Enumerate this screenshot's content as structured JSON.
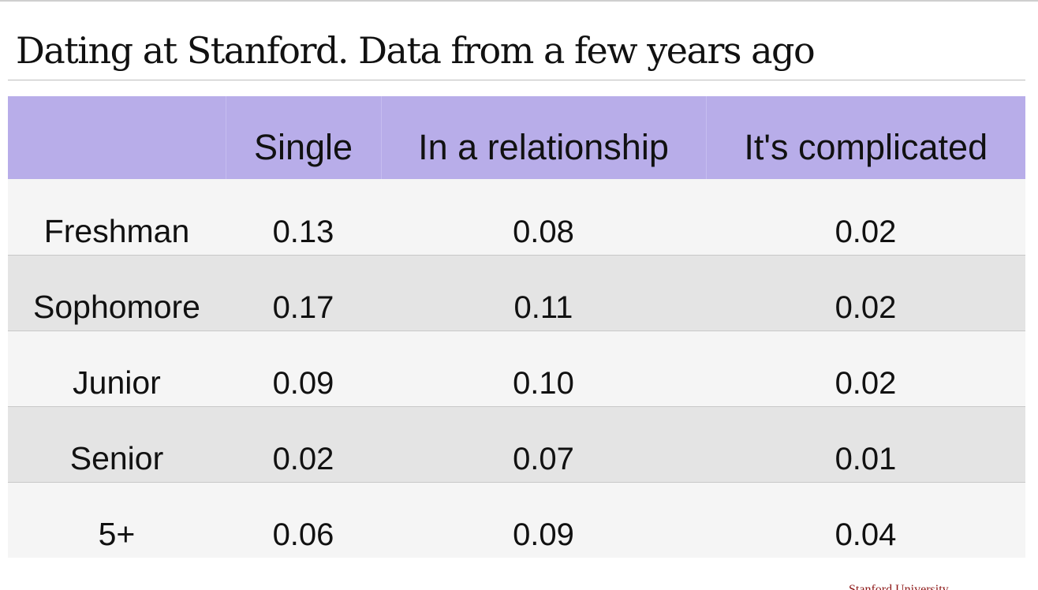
{
  "slide": {
    "title": "Dating at Stanford. Data from a few years ago",
    "footer_brand": "Stanford University"
  },
  "colors": {
    "header_bg": "#b8ade9",
    "row_light": "#f5f5f5",
    "row_dark": "#e4e4e4",
    "brand": "#8c1515"
  },
  "table": {
    "headers": [
      "",
      "Single",
      "In a relationship",
      "It's complicated"
    ],
    "rows": [
      {
        "label": "Freshman",
        "values": [
          "0.13",
          "0.08",
          "0.02"
        ]
      },
      {
        "label": "Sophomore",
        "values": [
          "0.17",
          "0.11",
          "0.02"
        ]
      },
      {
        "label": "Junior",
        "values": [
          "0.09",
          "0.10",
          "0.02"
        ]
      },
      {
        "label": "Senior",
        "values": [
          "0.02",
          "0.07",
          "0.01"
        ]
      },
      {
        "label": "5+",
        "values": [
          "0.06",
          "0.09",
          "0.04"
        ]
      }
    ]
  }
}
